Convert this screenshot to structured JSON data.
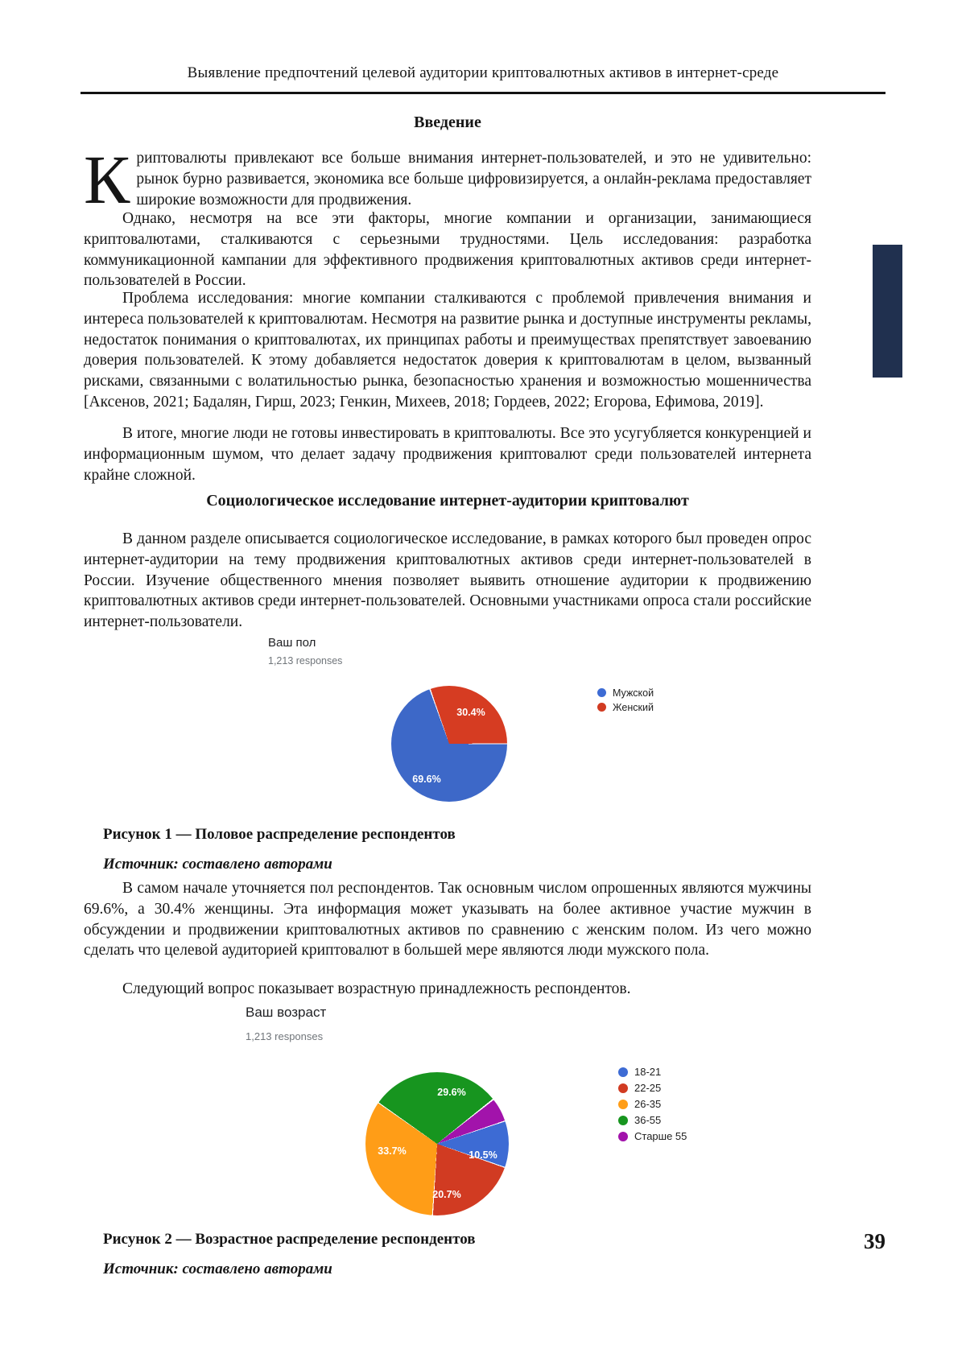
{
  "page": {
    "number": "39"
  },
  "header": {
    "running_title": "Выявление предпочтений целевой аудитории криптовалютных активов в интернет-среде"
  },
  "intro": {
    "heading": "Введение",
    "dropcap": "К",
    "p1": "риптовалюты привлекают все больше внимания интернет-пользователей, и это не удивительно: рынок бурно развивается, экономика все больше цифровизируется, а онлайн-реклама предоставляет широкие возможности для продвижения.",
    "p2": "Однако, несмотря на все эти факторы, многие компании и организации, занимающиеся криптовалютами, сталкиваются с серьезными трудностями. Цель исследования: разработка коммуникационной кампании для эффективного продвижения криптовалютных активов среди интернет-пользователей в России.",
    "p3": "Проблема исследования: многие компании сталкиваются с проблемой привлечения внимания и интереса пользователей к криптовалютам. Несмотря на развитие рынка и доступные инструменты рекламы, недостаток понимания о криптовалютах, их принципах работы и преимуществах препятствует завоеванию доверия пользователей. К этому добавляется недостаток доверия к криптовалютам в целом, вызванный рисками, связанными с волатильностью рынка, безопасностью хранения и возможностью мошенничества [Аксенов, 2021; Бадалян, Гирш, 2023; Генкин, Михеев, 2018; Гордеев, 2022; Егорова, Ефимова, 2019].",
    "p4": "В итоге, многие люди не готовы инвестировать в криптовалюты. Все это усугубляется конкуренцией и информационным шумом, что делает задачу продвижения криптовалют среди пользователей интернета крайне сложной."
  },
  "survey": {
    "heading": "Социологическое исследование интернет-аудитории криптовалют",
    "p1": "В данном разделе описывается социологическое исследование, в рамках которого был проведен опрос интернет-аудитории на тему продвижения криптовалютных активов среди интернет-пользователей в России. Изучение общественного мнения позволяет выявить отношение аудитории к продвижению криптовалютных активов среди интернет-пользователей. Основными участниками опроса стали российские интернет-пользователи.",
    "p2": "В самом начале уточняется пол респондентов. Так основным числом опрошенных являются мужчины 69.6%, а 30.4% женщины. Эта информация может указывать на более активное участие мужчин в обсуждении и продвижении криптовалютных активов по сравнению с женским полом. Из чего можно сделать что целевой аудиторией криптовалют в большей мере являются люди мужского пола.",
    "p3": "Следующий вопрос показывает возрастную принадлежность респондентов."
  },
  "figure1": {
    "title": "Ваш пол",
    "responses": "1,213 responses",
    "legend": [
      "Мужской",
      "Женский"
    ],
    "slice_labels": [
      "69.6%",
      "30.4%"
    ],
    "caption": "Рисунок 1 — Половое распределение респондентов",
    "source": "Источник: составлено авторами"
  },
  "figure2": {
    "title": "Ваш возраст",
    "responses": "1,213 responses",
    "legend": [
      "18-21",
      "22-25",
      "26-35",
      "36-55",
      "Старше 55"
    ],
    "slice_labels": [
      "10.5%",
      "20.7%",
      "33.7%",
      "29.6%"
    ],
    "caption": "Рисунок 2 — Возрастное распределение респондентов",
    "source": "Источник: составлено авторами"
  },
  "chart_data": [
    {
      "type": "pie",
      "title": "Ваш пол",
      "subtitle": "1,213 responses",
      "categories": [
        "Мужской",
        "Женский"
      ],
      "values": [
        69.6,
        30.4
      ],
      "unit": "%",
      "colors": [
        "#3d68c8",
        "#d63c22"
      ],
      "legend_position": "right",
      "visible_slice_labels": [
        "69.6%",
        "30.4%"
      ]
    },
    {
      "type": "pie",
      "title": "Ваш возраст",
      "subtitle": "1,213 responses",
      "categories": [
        "18-21",
        "22-25",
        "26-35",
        "36-55",
        "Старше 55"
      ],
      "values": [
        10.5,
        20.7,
        33.7,
        29.6,
        5.5
      ],
      "unit": "%",
      "colors": [
        "#3d6bd4",
        "#d13b22",
        "#ff9d17",
        "#17951f",
        "#a213ab"
      ],
      "legend_position": "right",
      "visible_slice_labels": [
        "10.5%",
        "20.7%",
        "33.7%",
        "29.6%",
        ""
      ]
    }
  ]
}
